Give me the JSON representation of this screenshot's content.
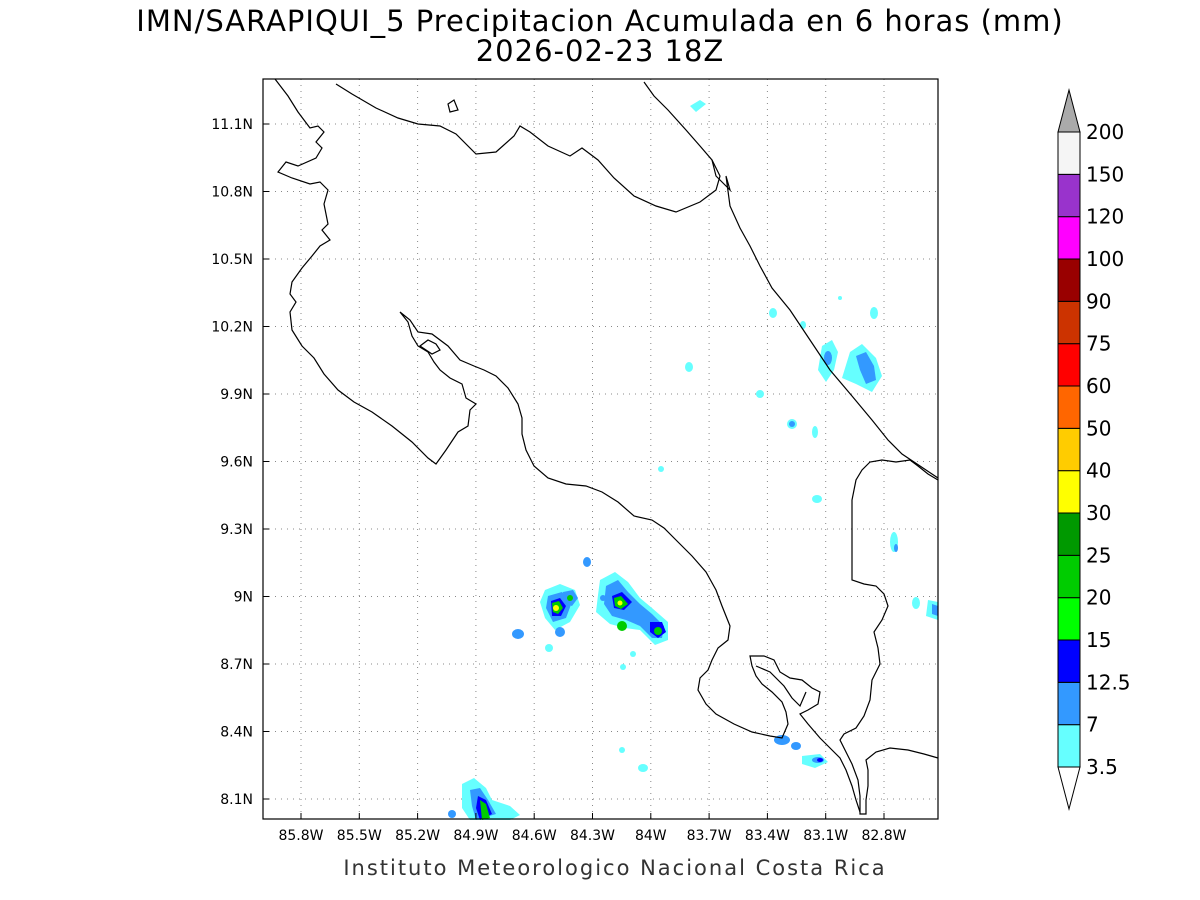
{
  "header": {
    "title": "IMN/SARAPIQUI_5 Precipitacion Acumulada en 6 horas (mm)",
    "subtitle": "2026-02-23 18Z"
  },
  "map": {
    "lon_ticks": [
      "85.8W",
      "85.5W",
      "85.2W",
      "84.9W",
      "84.6W",
      "84.3W",
      "84W",
      "83.7W",
      "83.4W",
      "83.1W",
      "82.8W"
    ],
    "lat_ticks": [
      "11.1N",
      "10.8N",
      "10.5N",
      "10.2N",
      "9.9N",
      "9.6N",
      "9.3N",
      "9N",
      "8.7N",
      "8.4N",
      "8.1N"
    ],
    "grid": "dotted",
    "lon_range": [
      -85.97,
      -82.98
    ],
    "lat_range": [
      8.0,
      11.3
    ]
  },
  "legend": {
    "colors": [
      "#66ffff",
      "#3399ff",
      "#0000ff",
      "#00ff00",
      "#00cc00",
      "#009900",
      "#ffff00",
      "#ffcc00",
      "#ff6600",
      "#ff0000",
      "#cc3300",
      "#990000",
      "#ff00ff",
      "#9933cc",
      "#f5f5f5"
    ],
    "labels": [
      "3.5",
      "7",
      "12.5",
      "15",
      "20",
      "25",
      "30",
      "40",
      "50",
      "60",
      "75",
      "90",
      "100",
      "120",
      "150",
      "200"
    ],
    "over_color": "#aaaaaa",
    "under_color": "#ffffff"
  },
  "footer": {
    "credit": "Instituto Meteorologico Nacional Costa Rica"
  }
}
